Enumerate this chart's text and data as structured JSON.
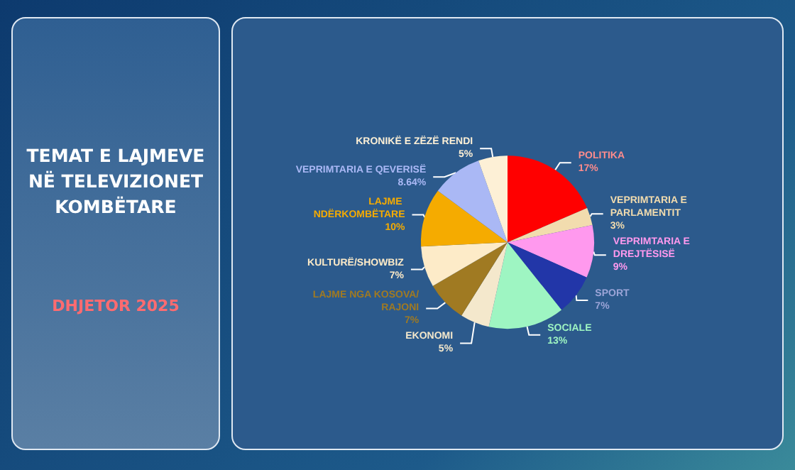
{
  "chart_data": {
    "type": "pie",
    "title": "TEMAT E LAJMEVE NË TELEVIZIONET KOMBËTARE",
    "subtitle": "DHJETOR 2025",
    "categories": [
      "POLITIKA",
      "VEPRIMTARIA E PARLAMENTIT",
      "VEPRIMTARIA E DREJTËSISË",
      "SPORT",
      "SOCIALE",
      "EKONOMI",
      "LAJME NGA KOSOVA/RAJONI",
      "KULTURË/SHOWBIZ",
      "LAJME NDËRKOMBËTARE",
      "VEPRIMTARIA E QEVERISË",
      "KRONIKË E ZËZË RENDI"
    ],
    "values": [
      17,
      3,
      9,
      7,
      13,
      5,
      7,
      7,
      10,
      8.64,
      5
    ],
    "value_labels": [
      "17%",
      "3%",
      "9%",
      "7%",
      "13%",
      "5%",
      "7%",
      "7%",
      "10%",
      "8.64%",
      "5%"
    ],
    "colors": [
      "#ff0000",
      "#f2dcae",
      "#ff99ee",
      "#2236a8",
      "#9ef5c2",
      "#f4e8cc",
      "#a07a22",
      "#fdebc8",
      "#f5ab00",
      "#aab8f5",
      "#fdf0d6"
    ],
    "legend": false
  }
}
